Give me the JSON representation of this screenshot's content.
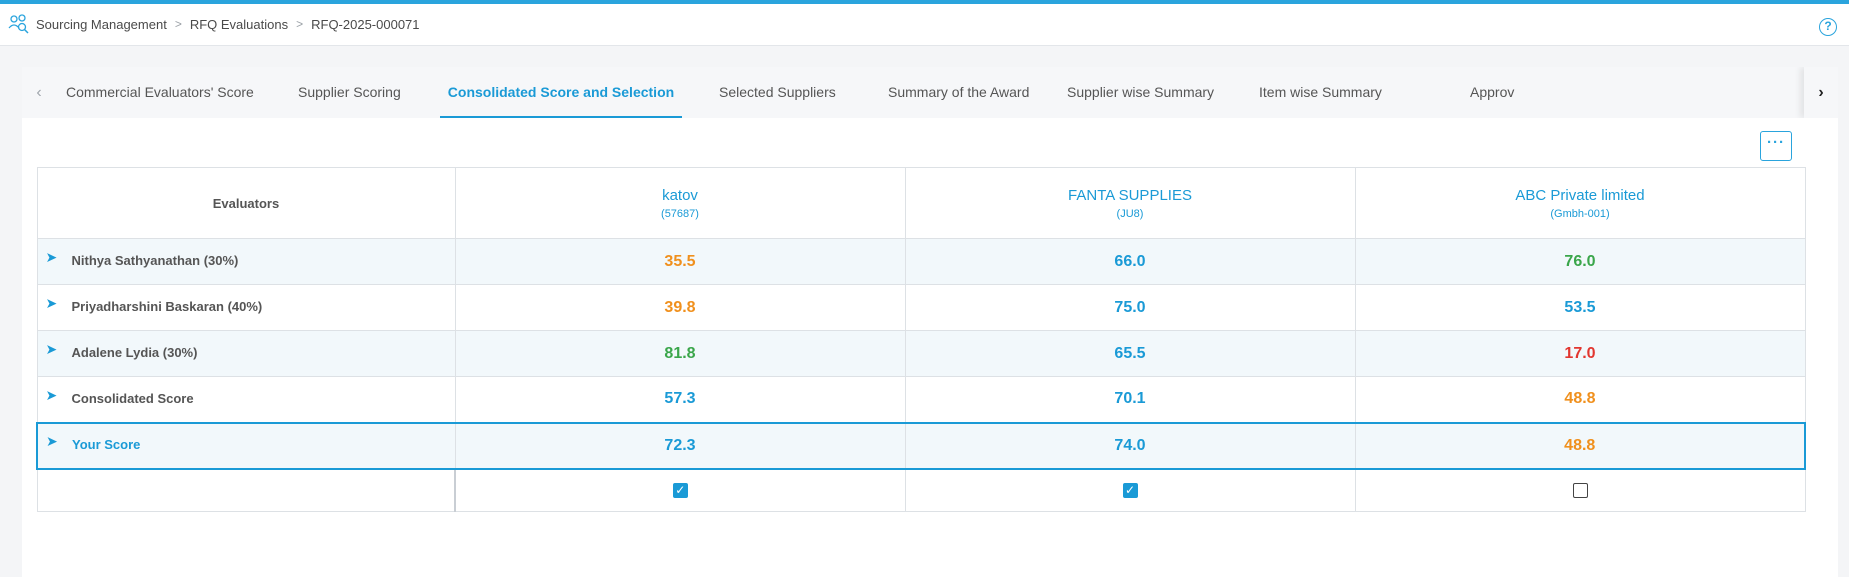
{
  "colors": {
    "accent": "#1a9ad6",
    "orange": "#f0901d",
    "green": "#3aa64a",
    "blue": "#1a9ad6",
    "red": "#e2362f"
  },
  "breadcrumb": [
    "Sourcing Management",
    "RFQ Evaluations",
    "RFQ-2025-000071"
  ],
  "help_label": "?",
  "tabs": [
    {
      "label": "Commercial Evaluators' Score",
      "active": false
    },
    {
      "label": "Supplier Scoring",
      "active": false
    },
    {
      "label": "Consolidated Score and Selection",
      "active": true
    },
    {
      "label": "Selected Suppliers",
      "active": false
    },
    {
      "label": "Summary of the Award",
      "active": false
    },
    {
      "label": "Supplier wise Summary",
      "active": false
    },
    {
      "label": "Item wise Summary",
      "active": false
    },
    {
      "label": "Approv",
      "active": false
    }
  ],
  "more_label": "···",
  "table": {
    "header_label": "Evaluators",
    "suppliers": [
      {
        "name": "katov",
        "code": "(57687)",
        "selected": true
      },
      {
        "name": "FANTA SUPPLIES",
        "code": "(JU8)",
        "selected": true
      },
      {
        "name": "ABC Private limited",
        "code": "(Gmbh-001)",
        "selected": false
      }
    ],
    "rows": [
      {
        "label": "Nithya Sathyanathan (30%)",
        "scores": [
          {
            "v": "35.5",
            "c": "orange"
          },
          {
            "v": "66.0",
            "c": "blue"
          },
          {
            "v": "76.0",
            "c": "green"
          }
        ]
      },
      {
        "label": "Priyadharshini Baskaran (40%)",
        "scores": [
          {
            "v": "39.8",
            "c": "orange"
          },
          {
            "v": "75.0",
            "c": "blue"
          },
          {
            "v": "53.5",
            "c": "blue"
          }
        ]
      },
      {
        "label": "Adalene Lydia (30%)",
        "scores": [
          {
            "v": "81.8",
            "c": "green"
          },
          {
            "v": "65.5",
            "c": "blue"
          },
          {
            "v": "17.0",
            "c": "red"
          }
        ]
      },
      {
        "label": "Consolidated Score",
        "scores": [
          {
            "v": "57.3",
            "c": "blue"
          },
          {
            "v": "70.1",
            "c": "blue"
          },
          {
            "v": "48.8",
            "c": "orange"
          }
        ]
      },
      {
        "label": "Your Score",
        "scores": [
          {
            "v": "72.3",
            "c": "blue"
          },
          {
            "v": "74.0",
            "c": "blue"
          },
          {
            "v": "48.8",
            "c": "orange"
          }
        ]
      }
    ]
  }
}
